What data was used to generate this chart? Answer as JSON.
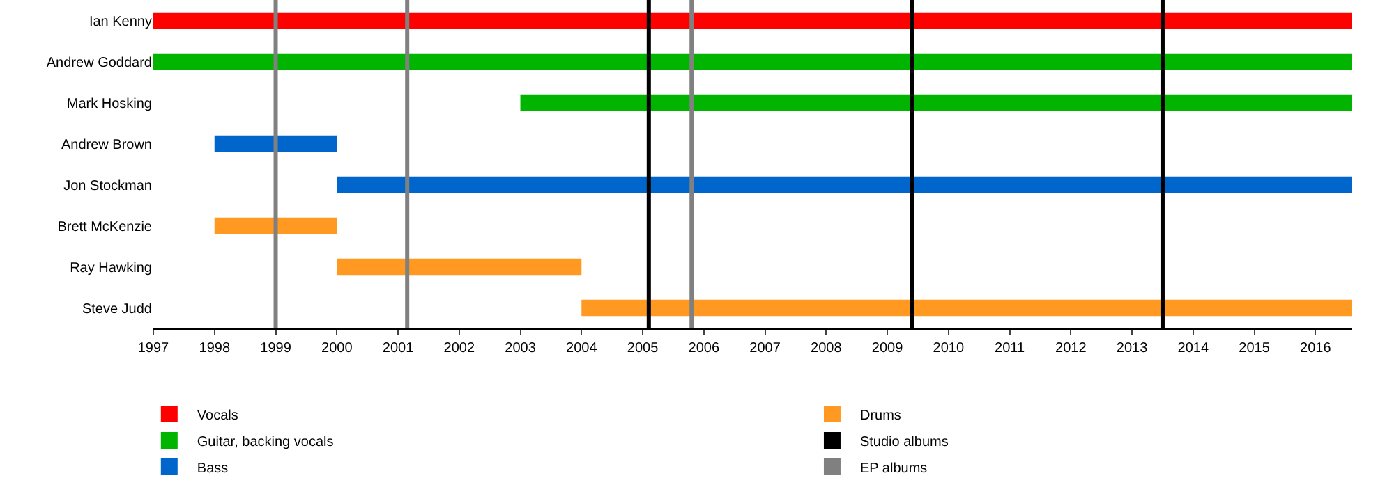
{
  "chart_data": {
    "type": "bar",
    "orientation": "horizontal",
    "stacked": true,
    "categories": [
      "Ian Kenny",
      "Andrew Goddard",
      "Mark Hosking",
      "Andrew Brown",
      "Jon Stockman",
      "Brett McKenzie",
      "Ray Hawking",
      "Steve Judd"
    ],
    "series": [
      {
        "name": "Vocals",
        "color": "#ff0000",
        "values": [
          19.6,
          null,
          null,
          null,
          null,
          null,
          null,
          null
        ],
        "base": [
          1997,
          null,
          null,
          null,
          null,
          null,
          null,
          null
        ]
      },
      {
        "name": "Guitar, backing vocals",
        "color": "#00b400",
        "values": [
          null,
          19.6,
          13.6,
          null,
          null,
          null,
          null,
          null
        ],
        "base": [
          null,
          1997,
          2003,
          null,
          null,
          null,
          null,
          null
        ]
      },
      {
        "name": "Bass",
        "color": "#0066cc",
        "values": [
          null,
          null,
          null,
          2,
          16.6,
          null,
          null,
          null
        ],
        "base": [
          null,
          null,
          null,
          1998,
          2000,
          null,
          null,
          null
        ]
      },
      {
        "name": "Drums",
        "color": "#ff9922",
        "values": [
          null,
          null,
          null,
          null,
          null,
          2,
          4,
          12.6
        ],
        "base": [
          null,
          null,
          null,
          null,
          null,
          1998,
          2000,
          2004
        ]
      }
    ],
    "ref_lines": [
      {
        "axis": "x",
        "value": 1999.0,
        "color": "#808080"
      },
      {
        "axis": "x",
        "value": 2001.15,
        "color": "#808080"
      },
      {
        "axis": "x",
        "value": 2005.1,
        "label": "Studio albums",
        "color": "#000000"
      },
      {
        "axis": "x",
        "value": 2005.8,
        "label": "EP albums",
        "color": "#808080"
      },
      {
        "axis": "x",
        "value": 2009.4,
        "color": "#000000"
      },
      {
        "axis": "x",
        "value": 2013.5,
        "color": "#000000"
      }
    ],
    "xlim": [
      1997,
      2016.6
    ],
    "xticks": [
      1997,
      1998,
      1999,
      2000,
      2001,
      2002,
      2003,
      2004,
      2005,
      2006,
      2007,
      2008,
      2009,
      2010,
      2011,
      2012,
      2013,
      2014,
      2015,
      2016
    ],
    "legend": "bottom"
  }
}
